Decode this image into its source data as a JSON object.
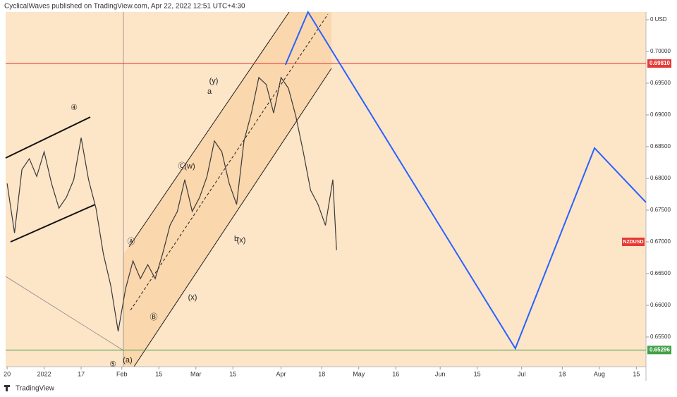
{
  "chart_data": {
    "type": "line",
    "title": "CyclicalWaves published on TradingView.com, Apr 22, 2022 12:51 UTC+4:30",
    "symbol": "NZDUSD",
    "brand": "TradingView",
    "xlim": [
      -0.4,
      172.6
    ],
    "ylim": [
      0.65033,
      0.70622
    ],
    "xticks": [
      {
        "value": 0,
        "label": "20"
      },
      {
        "value": 10,
        "label": "2022"
      },
      {
        "value": 20,
        "label": "17"
      },
      {
        "value": 31,
        "label": "Feb"
      },
      {
        "value": 41,
        "label": "15"
      },
      {
        "value": 51,
        "label": "Mar"
      },
      {
        "value": 61,
        "label": "15"
      },
      {
        "value": 74,
        "label": "Apr"
      },
      {
        "value": 85,
        "label": "18"
      },
      {
        "value": 95,
        "label": "May"
      },
      {
        "value": 105,
        "label": "16"
      },
      {
        "value": 117,
        "label": "Jun"
      },
      {
        "value": 127,
        "label": "15"
      },
      {
        "value": 139,
        "label": "Jul"
      },
      {
        "value": 150,
        "label": "18"
      },
      {
        "value": 160,
        "label": "Aug"
      },
      {
        "value": 170,
        "label": "15"
      }
    ],
    "yticks": [
      {
        "value": 0.655,
        "label": "0.65500"
      },
      {
        "value": 0.66,
        "label": "0.66000"
      },
      {
        "value": 0.665,
        "label": "0.66500"
      },
      {
        "value": 0.67,
        "label": "0.67000"
      },
      {
        "value": 0.675,
        "label": "0.67500"
      },
      {
        "value": 0.68,
        "label": "0.68000"
      },
      {
        "value": 0.685,
        "label": "0.68500"
      },
      {
        "value": 0.69,
        "label": "0.69000"
      },
      {
        "value": 0.695,
        "label": "0.69500"
      },
      {
        "value": 0.7,
        "label": "0.70000"
      },
      {
        "value": 0.705,
        "label": "0 USD"
      }
    ],
    "hlines": [
      {
        "value": 0.6981,
        "label": "0.69810",
        "color": "#e53935"
      },
      {
        "value": 0.65296,
        "label": "0.65296",
        "color": "#43a047"
      }
    ],
    "last_price": 0.67,
    "series": [
      {
        "color": "#3a3a3a",
        "x": [
          0,
          2,
          4,
          6,
          8,
          10,
          12,
          14,
          16,
          18,
          20,
          22,
          24,
          26,
          28,
          30,
          32,
          34,
          36,
          38,
          40,
          42,
          44,
          46,
          48,
          50,
          52,
          54,
          56,
          58,
          60,
          62,
          64,
          66,
          68,
          70,
          72,
          74,
          76,
          78,
          80,
          82,
          84,
          86,
          88,
          89
        ],
        "values": [
          0.6792,
          0.6714,
          0.6814,
          0.6831,
          0.6803,
          0.6842,
          0.6792,
          0.6753,
          0.677,
          0.6798,
          0.6864,
          0.6798,
          0.6753,
          0.6681,
          0.6631,
          0.6559,
          0.6626,
          0.667,
          0.6642,
          0.6664,
          0.6642,
          0.6681,
          0.6726,
          0.6748,
          0.6798,
          0.6748,
          0.677,
          0.6803,
          0.6859,
          0.6842,
          0.6792,
          0.6759,
          0.6859,
          0.6903,
          0.6959,
          0.6948,
          0.6903,
          0.6959,
          0.6942,
          0.6898,
          0.6842,
          0.6781,
          0.6759,
          0.6726,
          0.6798,
          0.6687
        ]
      },
      {
        "color": "#2962ff",
        "x": [
          75.2,
          81.3,
          137.3,
          158.7,
          172.6
        ],
        "values": [
          0.6979,
          0.70622,
          0.6532,
          0.68478,
          0.67622
        ]
      }
    ],
    "annotations": [
      "④",
      "Ⓐ",
      "Ⓑ",
      "Ⓒ",
      "(w)",
      "(y)",
      "a",
      "b",
      "(x)",
      "(x)",
      "⑤",
      "(a)"
    ]
  }
}
